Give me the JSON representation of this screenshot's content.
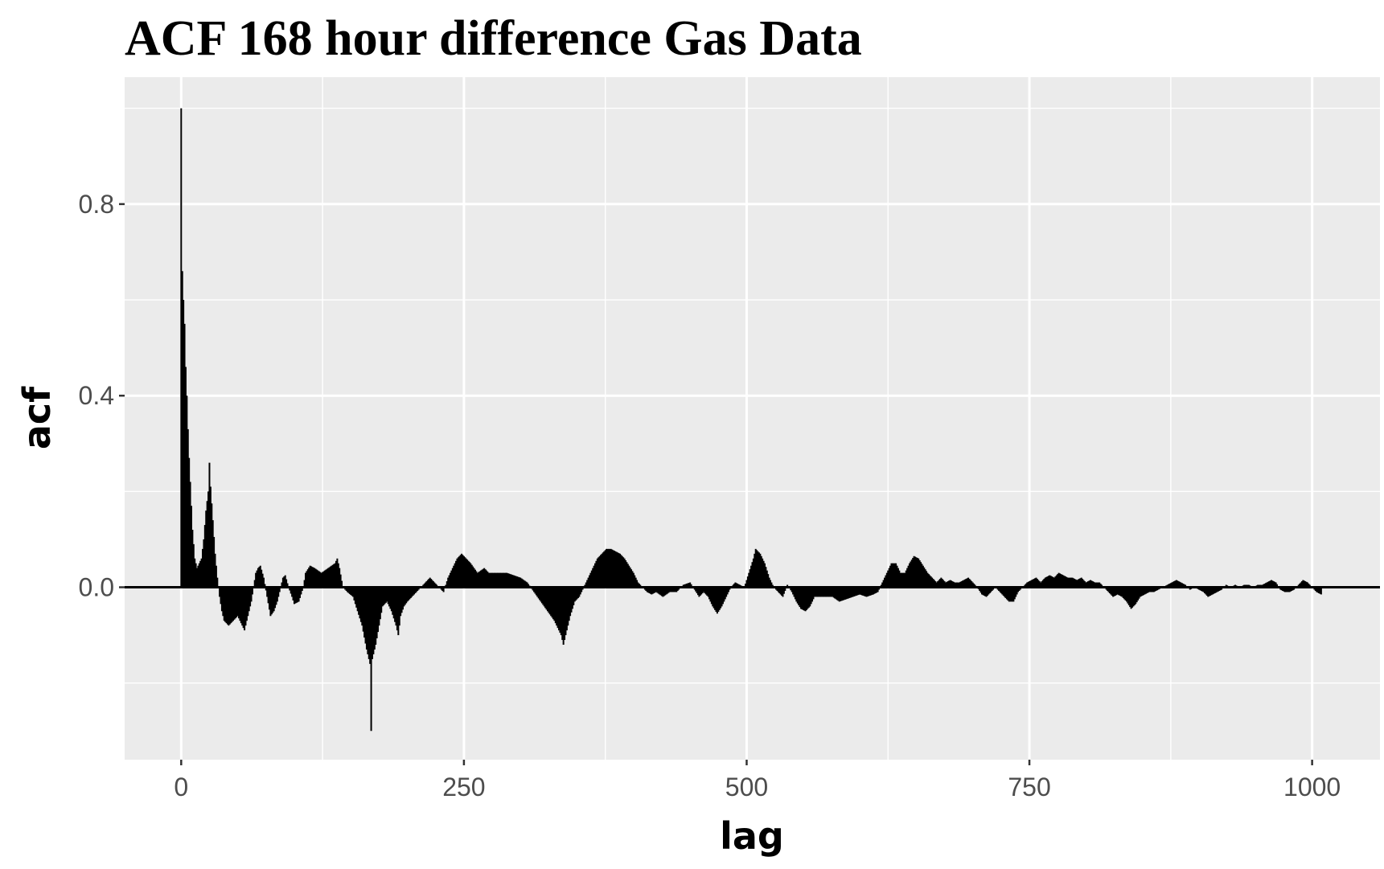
{
  "chart_data": {
    "type": "bar",
    "title": "ACF 168 hour difference Gas Data",
    "xlabel": "lag",
    "ylabel": "acf",
    "xlim": [
      -50,
      1060
    ],
    "ylim": [
      -0.36,
      1.065
    ],
    "x_ticks": [
      0,
      250,
      500,
      750,
      1000
    ],
    "x_tick_labels": [
      "0",
      "250",
      "500",
      "750",
      "1000"
    ],
    "y_ticks": [
      0.0,
      0.4,
      0.8
    ],
    "y_tick_labels": [
      "0.0",
      "0.4",
      "0.8"
    ],
    "grid": true,
    "zero_line": true,
    "colors": {
      "panel": "#ebebeb",
      "grid": "#ffffff",
      "bars": "#000000",
      "ticks": "#4d4d4d"
    },
    "anchors": [
      [
        0,
        1.0
      ],
      [
        1,
        0.66
      ],
      [
        2,
        0.6
      ],
      [
        3,
        0.55
      ],
      [
        4,
        0.46
      ],
      [
        5,
        0.4
      ],
      [
        6,
        0.33
      ],
      [
        7,
        0.27
      ],
      [
        8,
        0.22
      ],
      [
        9,
        0.17
      ],
      [
        10,
        0.12
      ],
      [
        12,
        0.06
      ],
      [
        14,
        0.04
      ],
      [
        16,
        0.05
      ],
      [
        18,
        0.06
      ],
      [
        20,
        0.1
      ],
      [
        22,
        0.16
      ],
      [
        24,
        0.2
      ],
      [
        25,
        0.26
      ],
      [
        26,
        0.21
      ],
      [
        28,
        0.14
      ],
      [
        30,
        0.07
      ],
      [
        32,
        0.02
      ],
      [
        34,
        -0.02
      ],
      [
        36,
        -0.05
      ],
      [
        38,
        -0.07
      ],
      [
        42,
        -0.08
      ],
      [
        46,
        -0.07
      ],
      [
        50,
        -0.06
      ],
      [
        54,
        -0.08
      ],
      [
        56,
        -0.09
      ],
      [
        58,
        -0.07
      ],
      [
        62,
        -0.03
      ],
      [
        64,
        0.0
      ],
      [
        66,
        0.03
      ],
      [
        68,
        0.04
      ],
      [
        70,
        0.045
      ],
      [
        73,
        0.02
      ],
      [
        76,
        -0.02
      ],
      [
        79,
        -0.06
      ],
      [
        82,
        -0.05
      ],
      [
        85,
        -0.03
      ],
      [
        88,
        0.0
      ],
      [
        90,
        0.02
      ],
      [
        92,
        0.025
      ],
      [
        95,
        0.0
      ],
      [
        98,
        -0.02
      ],
      [
        100,
        -0.035
      ],
      [
        104,
        -0.03
      ],
      [
        108,
        0.0
      ],
      [
        110,
        0.03
      ],
      [
        114,
        0.045
      ],
      [
        118,
        0.04
      ],
      [
        124,
        0.03
      ],
      [
        130,
        0.04
      ],
      [
        136,
        0.05
      ],
      [
        138,
        0.06
      ],
      [
        140,
        0.04
      ],
      [
        143,
        0.0
      ],
      [
        147,
        -0.01
      ],
      [
        152,
        -0.02
      ],
      [
        156,
        -0.05
      ],
      [
        160,
        -0.08
      ],
      [
        164,
        -0.13
      ],
      [
        167,
        -0.16
      ],
      [
        168,
        -0.3
      ],
      [
        169,
        -0.15
      ],
      [
        172,
        -0.12
      ],
      [
        175,
        -0.08
      ],
      [
        178,
        -0.04
      ],
      [
        182,
        -0.03
      ],
      [
        186,
        -0.05
      ],
      [
        190,
        -0.08
      ],
      [
        192,
        -0.1
      ],
      [
        194,
        -0.06
      ],
      [
        197,
        -0.04
      ],
      [
        200,
        -0.03
      ],
      [
        204,
        -0.02
      ],
      [
        208,
        -0.01
      ],
      [
        212,
        0.0
      ],
      [
        216,
        0.01
      ],
      [
        220,
        0.02
      ],
      [
        224,
        0.01
      ],
      [
        228,
        0.0
      ],
      [
        232,
        -0.01
      ],
      [
        236,
        0.02
      ],
      [
        240,
        0.04
      ],
      [
        244,
        0.06
      ],
      [
        248,
        0.07
      ],
      [
        252,
        0.06
      ],
      [
        256,
        0.05
      ],
      [
        262,
        0.03
      ],
      [
        268,
        0.04
      ],
      [
        272,
        0.03
      ],
      [
        280,
        0.03
      ],
      [
        288,
        0.03
      ],
      [
        294,
        0.025
      ],
      [
        300,
        0.02
      ],
      [
        306,
        0.01
      ],
      [
        312,
        -0.01
      ],
      [
        318,
        -0.03
      ],
      [
        324,
        -0.05
      ],
      [
        330,
        -0.07
      ],
      [
        336,
        -0.1
      ],
      [
        338,
        -0.12
      ],
      [
        340,
        -0.1
      ],
      [
        344,
        -0.06
      ],
      [
        348,
        -0.03
      ],
      [
        352,
        -0.02
      ],
      [
        356,
        0.0
      ],
      [
        360,
        0.02
      ],
      [
        364,
        0.04
      ],
      [
        368,
        0.06
      ],
      [
        372,
        0.07
      ],
      [
        376,
        0.08
      ],
      [
        380,
        0.08
      ],
      [
        384,
        0.075
      ],
      [
        388,
        0.07
      ],
      [
        392,
        0.06
      ],
      [
        396,
        0.045
      ],
      [
        400,
        0.03
      ],
      [
        404,
        0.01
      ],
      [
        408,
        0.0
      ],
      [
        412,
        -0.01
      ],
      [
        416,
        -0.015
      ],
      [
        420,
        -0.01
      ],
      [
        426,
        -0.02
      ],
      [
        432,
        -0.01
      ],
      [
        438,
        -0.01
      ],
      [
        444,
        0.005
      ],
      [
        450,
        0.01
      ],
      [
        454,
        -0.005
      ],
      [
        458,
        -0.02
      ],
      [
        462,
        -0.01
      ],
      [
        466,
        -0.02
      ],
      [
        470,
        -0.04
      ],
      [
        474,
        -0.055
      ],
      [
        478,
        -0.04
      ],
      [
        482,
        -0.02
      ],
      [
        486,
        0.0
      ],
      [
        490,
        0.01
      ],
      [
        494,
        0.005
      ],
      [
        498,
        0.0
      ],
      [
        502,
        0.03
      ],
      [
        506,
        0.06
      ],
      [
        508,
        0.08
      ],
      [
        512,
        0.07
      ],
      [
        516,
        0.05
      ],
      [
        520,
        0.02
      ],
      [
        524,
        0.0
      ],
      [
        528,
        -0.01
      ],
      [
        532,
        -0.02
      ],
      [
        536,
        0.005
      ],
      [
        540,
        -0.01
      ],
      [
        544,
        -0.03
      ],
      [
        548,
        -0.045
      ],
      [
        552,
        -0.05
      ],
      [
        556,
        -0.04
      ],
      [
        560,
        -0.02
      ],
      [
        564,
        -0.02
      ],
      [
        570,
        -0.02
      ],
      [
        576,
        -0.02
      ],
      [
        582,
        -0.03
      ],
      [
        588,
        -0.025
      ],
      [
        594,
        -0.02
      ],
      [
        600,
        -0.015
      ],
      [
        606,
        -0.02
      ],
      [
        612,
        -0.015
      ],
      [
        616,
        -0.01
      ],
      [
        620,
        0.01
      ],
      [
        624,
        0.03
      ],
      [
        628,
        0.05
      ],
      [
        632,
        0.05
      ],
      [
        636,
        0.03
      ],
      [
        640,
        0.03
      ],
      [
        644,
        0.05
      ],
      [
        648,
        0.065
      ],
      [
        652,
        0.06
      ],
      [
        656,
        0.045
      ],
      [
        660,
        0.03
      ],
      [
        664,
        0.02
      ],
      [
        668,
        0.01
      ],
      [
        672,
        0.02
      ],
      [
        676,
        0.01
      ],
      [
        680,
        0.015
      ],
      [
        684,
        0.01
      ],
      [
        688,
        0.01
      ],
      [
        692,
        0.015
      ],
      [
        696,
        0.02
      ],
      [
        700,
        0.01
      ],
      [
        704,
        0.0
      ],
      [
        708,
        -0.015
      ],
      [
        712,
        -0.02
      ],
      [
        716,
        -0.01
      ],
      [
        720,
        0.0
      ],
      [
        724,
        -0.01
      ],
      [
        728,
        -0.02
      ],
      [
        732,
        -0.03
      ],
      [
        736,
        -0.03
      ],
      [
        740,
        -0.01
      ],
      [
        744,
        0.0
      ],
      [
        748,
        0.01
      ],
      [
        752,
        0.015
      ],
      [
        756,
        0.02
      ],
      [
        760,
        0.01
      ],
      [
        764,
        0.02
      ],
      [
        768,
        0.025
      ],
      [
        772,
        0.02
      ],
      [
        776,
        0.03
      ],
      [
        780,
        0.025
      ],
      [
        784,
        0.02
      ],
      [
        788,
        0.02
      ],
      [
        792,
        0.015
      ],
      [
        796,
        0.02
      ],
      [
        800,
        0.01
      ],
      [
        804,
        0.015
      ],
      [
        808,
        0.01
      ],
      [
        812,
        0.01
      ],
      [
        816,
        0.0
      ],
      [
        820,
        -0.01
      ],
      [
        824,
        -0.02
      ],
      [
        828,
        -0.015
      ],
      [
        832,
        -0.02
      ],
      [
        836,
        -0.03
      ],
      [
        840,
        -0.045
      ],
      [
        844,
        -0.035
      ],
      [
        848,
        -0.02
      ],
      [
        852,
        -0.015
      ],
      [
        856,
        -0.01
      ],
      [
        860,
        -0.01
      ],
      [
        864,
        -0.005
      ],
      [
        868,
        0.0
      ],
      [
        872,
        0.005
      ],
      [
        876,
        0.01
      ],
      [
        880,
        0.015
      ],
      [
        884,
        0.01
      ],
      [
        888,
        0.005
      ],
      [
        892,
        -0.005
      ],
      [
        896,
        0.0
      ],
      [
        900,
        -0.005
      ],
      [
        904,
        -0.01
      ],
      [
        908,
        -0.02
      ],
      [
        912,
        -0.015
      ],
      [
        916,
        -0.01
      ],
      [
        920,
        -0.005
      ],
      [
        924,
        0.005
      ],
      [
        928,
        0.0
      ],
      [
        932,
        0.005
      ],
      [
        936,
        0.0
      ],
      [
        940,
        0.005
      ],
      [
        944,
        0.005
      ],
      [
        948,
        0.0
      ],
      [
        952,
        0.005
      ],
      [
        956,
        0.005
      ],
      [
        960,
        0.01
      ],
      [
        964,
        0.015
      ],
      [
        968,
        0.01
      ],
      [
        972,
        -0.005
      ],
      [
        976,
        -0.01
      ],
      [
        980,
        -0.01
      ],
      [
        984,
        -0.005
      ],
      [
        988,
        0.005
      ],
      [
        992,
        0.015
      ],
      [
        996,
        0.01
      ],
      [
        998,
        0.005
      ],
      [
        1000,
        0.0
      ],
      [
        1004,
        -0.01
      ],
      [
        1008,
        -0.015
      ]
    ]
  }
}
